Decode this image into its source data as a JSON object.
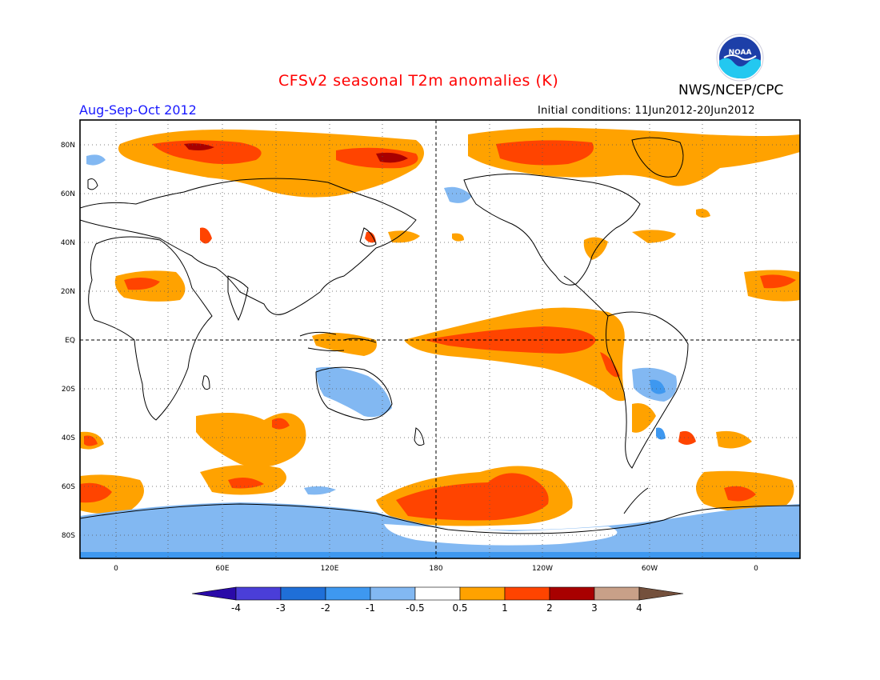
{
  "header": {
    "title": "CFSv2 seasonal T2m anomalies (K)",
    "season": "Aug-Sep-Oct 2012",
    "initial_conditions": "Initial conditions: 11Jun2012-20Jun2012",
    "agency": "NWS/NCEP/CPC",
    "logo_text": "NOAA"
  },
  "map": {
    "projection": "equirectangular",
    "central_longitude": "180",
    "lat_labels": [
      "80N",
      "60N",
      "40N",
      "20N",
      "EQ",
      "20S",
      "40S",
      "60S",
      "80S"
    ],
    "lon_labels": [
      "0",
      "60E",
      "120E",
      "180",
      "120W",
      "60W",
      "0"
    ],
    "grid": "dotted",
    "reference_lines": [
      "EQ",
      "180"
    ]
  },
  "colorbar": {
    "labels": [
      "-4",
      "-3",
      "-2",
      "-1",
      "-0.5",
      "0.5",
      "1",
      "2",
      "3",
      "4"
    ],
    "colors": [
      "#2a0aa8",
      "#4a3ed8",
      "#1f6fd8",
      "#3e98f0",
      "#82b8f2",
      "#ffffff",
      "#ffa200",
      "#ff4400",
      "#a80000",
      "#c8a088",
      "#74503c"
    ]
  },
  "anomaly_colors": {
    "cold_0_5_1": "#82b8f2",
    "cold_1_2": "#3e98f0",
    "cold_2_3": "#1f6fd8",
    "warm_0_5_1": "#ffa200",
    "warm_1_2": "#ff4400",
    "warm_2_3": "#a80000"
  }
}
